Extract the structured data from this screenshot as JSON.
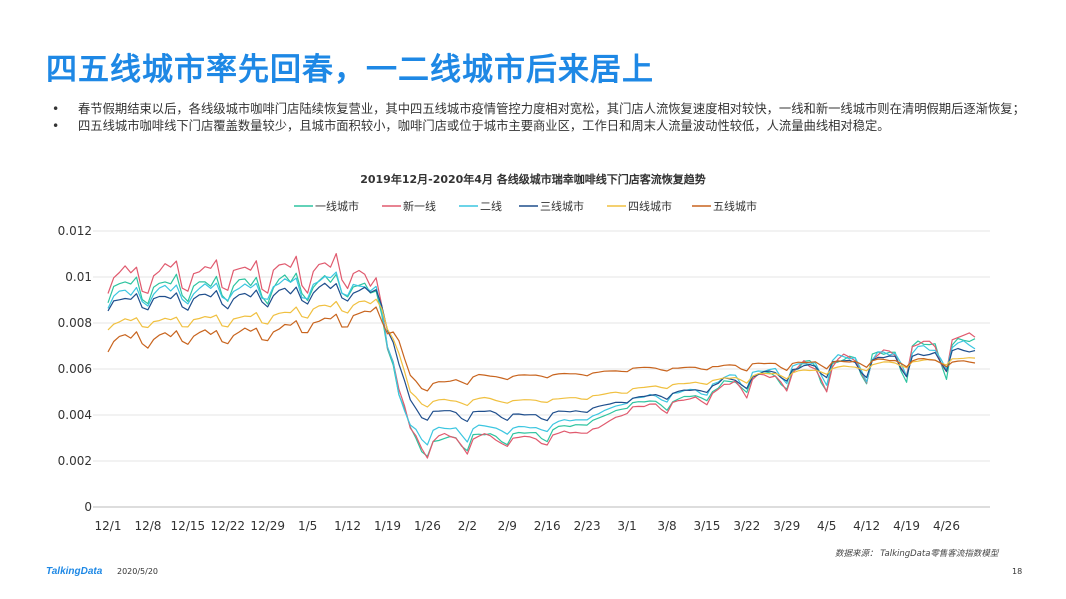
{
  "slide": {
    "title": "四五线城市率先回春，一二线城市后来居上",
    "bullets": [
      "春节假期结束以后，各线级城市咖啡门店陆续恢复营业，其中四五线城市疫情管控力度相对宽松，其门店人流恢复速度相对较快，一线和新一线城市则在清明假期后逐渐恢复；",
      "四五线城市咖啡线下门店覆盖数量较少，且城市面积较小，咖啡门店或位于城市主要商业区，工作日和周末人流量波动性较低，人流量曲线相对稳定。"
    ],
    "bullet_mark": "•",
    "source": "数据来源： TalkingData零售客流指数模型",
    "logo": "TalkingData",
    "date": "2020/5/20",
    "page": "18"
  },
  "chart_data": {
    "type": "line",
    "title": "2019年12月-2020年4月   各线级城市瑞幸咖啡线下门店客流恢复趋势",
    "xlabel": "",
    "ylabel": "",
    "ylim": [
      0,
      0.012
    ],
    "yticks": [
      0,
      0.002,
      0.004,
      0.006,
      0.008,
      0.01,
      0.012
    ],
    "ytick_labels": [
      "0",
      "0.002",
      "0.004",
      "0.006",
      "0.008",
      "0.01",
      "0.012"
    ],
    "x_tick_labels": [
      "12/1",
      "12/8",
      "12/15",
      "12/22",
      "12/29",
      "1/5",
      "1/12",
      "1/19",
      "1/26",
      "2/2",
      "2/9",
      "2/16",
      "2/23",
      "3/1",
      "3/8",
      "3/15",
      "3/22",
      "3/29",
      "4/5",
      "4/12",
      "4/19",
      "4/26"
    ],
    "x_tick_interval_days": 7,
    "start_date": "2019-12-01",
    "grid": "horizontal",
    "legend_position": "top",
    "series": [
      {
        "name": "一线城市",
        "color": "#2ec4a0",
        "anchors": [
          [
            0,
            0.0093
          ],
          [
            13,
            0.0094
          ],
          [
            26,
            0.0094
          ],
          [
            42,
            0.0095
          ],
          [
            48,
            0.0087
          ],
          [
            51,
            0.0045
          ],
          [
            53,
            0.003
          ],
          [
            55,
            0.0026
          ],
          [
            65,
            0.0029
          ],
          [
            76,
            0.0031
          ],
          [
            86,
            0.0038
          ],
          [
            92,
            0.0045
          ],
          [
            100,
            0.0045
          ],
          [
            112,
            0.0054
          ],
          [
            125,
            0.0058
          ],
          [
            138,
            0.0063
          ],
          [
            145,
            0.0066
          ],
          [
            152,
            0.0068
          ]
        ],
        "weekly_amp": [
          0.0006,
          0.0006,
          0.0007,
          0.0007,
          0.0005,
          0.0003,
          0.0001,
          0.0003,
          0.0006,
          0.0009,
          0.001,
          0.0009
        ]
      },
      {
        "name": "新一线",
        "color": "#e05a6e",
        "anchors": [
          [
            0,
            0.0097
          ],
          [
            13,
            0.0099
          ],
          [
            26,
            0.0099
          ],
          [
            42,
            0.0101
          ],
          [
            48,
            0.009
          ],
          [
            51,
            0.0045
          ],
          [
            53,
            0.0031
          ],
          [
            55,
            0.0027
          ],
          [
            65,
            0.0028
          ],
          [
            76,
            0.0029
          ],
          [
            86,
            0.0034
          ],
          [
            92,
            0.0043
          ],
          [
            100,
            0.0044
          ],
          [
            112,
            0.0053
          ],
          [
            125,
            0.0058
          ],
          [
            138,
            0.0063
          ],
          [
            145,
            0.0067
          ],
          [
            152,
            0.0069
          ]
        ],
        "weekly_amp": [
          0.0008,
          0.0008,
          0.0008,
          0.0008,
          0.0006,
          0.0003,
          0.0001,
          0.0003,
          0.0006,
          0.0009,
          0.001,
          0.001
        ]
      },
      {
        "name": "二线",
        "color": "#3cc6e0",
        "anchors": [
          [
            0,
            0.009
          ],
          [
            13,
            0.0092
          ],
          [
            26,
            0.0093
          ],
          [
            42,
            0.0096
          ],
          [
            48,
            0.0088
          ],
          [
            51,
            0.0045
          ],
          [
            53,
            0.0033
          ],
          [
            55,
            0.0031
          ],
          [
            65,
            0.0033
          ],
          [
            76,
            0.0034
          ],
          [
            86,
            0.004
          ],
          [
            92,
            0.0047
          ],
          [
            100,
            0.0048
          ],
          [
            112,
            0.0056
          ],
          [
            125,
            0.006
          ],
          [
            138,
            0.0063
          ],
          [
            145,
            0.0066
          ],
          [
            152,
            0.0067
          ]
        ],
        "weekly_amp": [
          0.0005,
          0.0005,
          0.0006,
          0.0006,
          0.0004,
          0.0002,
          0.0001,
          0.0003,
          0.0005,
          0.0007,
          0.0008,
          0.0007
        ]
      },
      {
        "name": "三线城市",
        "color": "#1f4e8c",
        "anchors": [
          [
            0,
            0.0088
          ],
          [
            13,
            0.0089
          ],
          [
            26,
            0.009
          ],
          [
            42,
            0.0093
          ],
          [
            48,
            0.0089
          ],
          [
            51,
            0.006
          ],
          [
            53,
            0.0044
          ],
          [
            55,
            0.004
          ],
          [
            65,
            0.004
          ],
          [
            76,
            0.0039
          ],
          [
            86,
            0.0043
          ],
          [
            92,
            0.0047
          ],
          [
            100,
            0.0049
          ],
          [
            112,
            0.0055
          ],
          [
            125,
            0.006
          ],
          [
            138,
            0.0062
          ],
          [
            145,
            0.0064
          ],
          [
            152,
            0.0066
          ]
        ],
        "weekly_amp": [
          0.0004,
          0.0004,
          0.0005,
          0.0005,
          0.0003,
          0.0002,
          0.0001,
          0.0002,
          0.0004,
          0.0005,
          0.0006,
          0.0005
        ]
      },
      {
        "name": "四线城市",
        "color": "#f0c040",
        "anchors": [
          [
            0,
            0.0079
          ],
          [
            13,
            0.008
          ],
          [
            26,
            0.0081
          ],
          [
            42,
            0.0087
          ],
          [
            48,
            0.0087
          ],
          [
            51,
            0.0065
          ],
          [
            53,
            0.0049
          ],
          [
            55,
            0.0045
          ],
          [
            65,
            0.0046
          ],
          [
            76,
            0.0046
          ],
          [
            86,
            0.0048
          ],
          [
            92,
            0.0051
          ],
          [
            100,
            0.0053
          ],
          [
            112,
            0.0056
          ],
          [
            125,
            0.0059
          ],
          [
            138,
            0.0062
          ],
          [
            145,
            0.0063
          ],
          [
            152,
            0.0064
          ]
        ],
        "weekly_amp": [
          0.0003,
          0.0003,
          0.0003,
          0.0003,
          0.0002,
          0.0001,
          0.0001,
          0.0001,
          0.0002,
          0.0002,
          0.0002,
          0.0002
        ]
      },
      {
        "name": "五线城市",
        "color": "#c8641e",
        "anchors": [
          [
            0,
            0.0071
          ],
          [
            13,
            0.0073
          ],
          [
            26,
            0.0074
          ],
          [
            42,
            0.0081
          ],
          [
            48,
            0.0083
          ],
          [
            51,
            0.007
          ],
          [
            53,
            0.0055
          ],
          [
            55,
            0.0052
          ],
          [
            65,
            0.0056
          ],
          [
            76,
            0.0057
          ],
          [
            86,
            0.0058
          ],
          [
            92,
            0.006
          ],
          [
            100,
            0.006
          ],
          [
            112,
            0.0061
          ],
          [
            125,
            0.0062
          ],
          [
            138,
            0.0063
          ],
          [
            145,
            0.0063
          ],
          [
            152,
            0.0062
          ]
        ],
        "weekly_amp": [
          0.0004,
          0.0004,
          0.0004,
          0.0004,
          0.0002,
          0.0001,
          0.0001,
          0.0001,
          0.0002,
          0.0002,
          0.0002,
          0.0002
        ]
      }
    ]
  }
}
